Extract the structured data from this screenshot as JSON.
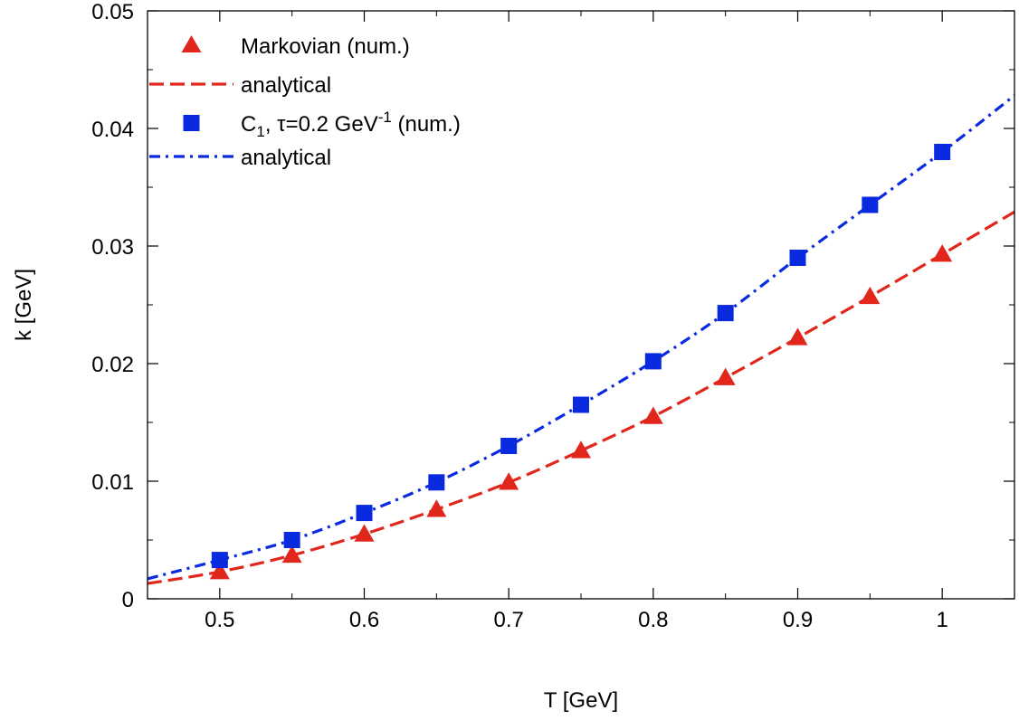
{
  "chart_data": {
    "type": "scatter",
    "xlabel": "T [GeV]",
    "ylabel": "k [GeV]",
    "xlim": [
      0.45,
      1.05
    ],
    "ylim": [
      0,
      0.05
    ],
    "x_ticks": [
      0.5,
      0.6,
      0.7,
      0.8,
      0.9,
      1.0
    ],
    "x_tick_labels": [
      "0.5",
      "0.6",
      "0.7",
      "0.8",
      "0.9",
      "1"
    ],
    "y_ticks": [
      0,
      0.01,
      0.02,
      0.03,
      0.04,
      0.05
    ],
    "y_tick_labels": [
      "0",
      "0.01",
      "0.02",
      "0.03",
      "0.04",
      "0.05"
    ],
    "grid": false,
    "legend_position": "top-left",
    "series": [
      {
        "name": "Markovian (num.)",
        "kind": "markers",
        "marker": "triangle",
        "color": "#e1261c",
        "x": [
          0.5,
          0.55,
          0.6,
          0.65,
          0.7,
          0.75,
          0.8,
          0.85,
          0.9,
          0.95,
          1.0
        ],
        "y": [
          0.0023,
          0.0037,
          0.0055,
          0.0076,
          0.0099,
          0.0126,
          0.0155,
          0.0188,
          0.0222,
          0.0257,
          0.0293
        ]
      },
      {
        "name": "analytical",
        "kind": "line",
        "dash": "dashed",
        "color": "#e1261c",
        "x": [
          0.45,
          0.5,
          0.55,
          0.6,
          0.65,
          0.7,
          0.75,
          0.8,
          0.85,
          0.9,
          0.95,
          1.0,
          1.05
        ],
        "y": [
          0.0013,
          0.0023,
          0.0037,
          0.0055,
          0.0076,
          0.0099,
          0.0126,
          0.0155,
          0.0188,
          0.0222,
          0.0257,
          0.0293,
          0.0329
        ]
      },
      {
        "name": "C",
        "name_sub": "1",
        "name_mid": ", τ=0.2 GeV",
        "name_sup": "-1",
        "name_end": " (num.)",
        "kind": "markers",
        "marker": "square",
        "color": "#0a2ae0",
        "x": [
          0.5,
          0.55,
          0.6,
          0.65,
          0.7,
          0.75,
          0.8,
          0.85,
          0.9,
          0.95,
          1.0
        ],
        "y": [
          0.0033,
          0.005,
          0.0073,
          0.0099,
          0.013,
          0.0165,
          0.0202,
          0.0243,
          0.029,
          0.0335,
          0.038
        ]
      },
      {
        "name": "analytical",
        "kind": "line",
        "dash": "dashdot",
        "color": "#0a2ae0",
        "x": [
          0.45,
          0.5,
          0.55,
          0.6,
          0.65,
          0.7,
          0.75,
          0.8,
          0.85,
          0.9,
          0.95,
          1.0,
          1.05
        ],
        "y": [
          0.0017,
          0.0033,
          0.005,
          0.0073,
          0.0099,
          0.013,
          0.0165,
          0.0202,
          0.0243,
          0.029,
          0.0335,
          0.038,
          0.0428
        ]
      }
    ]
  }
}
